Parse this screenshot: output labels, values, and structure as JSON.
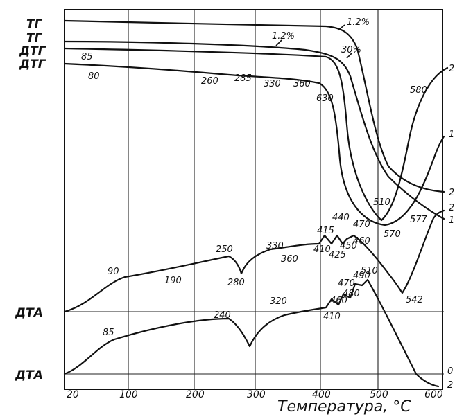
{
  "chart_data": {
    "type": "line",
    "xlabel": "Температура, °C",
    "xlim": [
      20,
      600
    ],
    "x_ticks": [
      "20",
      "100",
      "200",
      "300",
      "400",
      "500",
      "600"
    ],
    "grid": true,
    "left_labels": [
      "ТГ",
      "ТГ",
      "ДТГ",
      "ДТГ",
      "ДТА",
      "ДТА"
    ],
    "right_labels": [
      "2",
      "1",
      "2",
      "2",
      "1",
      "0",
      "2"
    ],
    "series": [
      {
        "values": [
          [
            20,
            0
          ],
          [
            400,
            -0.3
          ],
          [
            470,
            -1
          ],
          [
            500,
            -6
          ],
          [
            550,
            -30
          ],
          [
            600,
            -36
          ]
        ]
      },
      {
        "values": [
          [
            20,
            0
          ],
          [
            300,
            -1
          ],
          [
            440,
            -4
          ],
          [
            470,
            -10
          ],
          [
            530,
            -32
          ],
          [
            600,
            -38
          ]
        ]
      },
      {
        "values": [
          [
            20,
            0
          ],
          [
            300,
            -1
          ],
          [
            440,
            -5
          ],
          [
            500,
            -40
          ],
          [
            510,
            -45
          ],
          [
            530,
            -38
          ],
          [
            560,
            -25
          ],
          [
            600,
            -10
          ]
        ]
      },
      {
        "values": [
          [
            20,
            0
          ],
          [
            260,
            -1
          ],
          [
            285,
            -1.5
          ],
          [
            330,
            -2
          ],
          [
            360,
            -2.5
          ],
          [
            400,
            -6
          ],
          [
            440,
            -25
          ],
          [
            500,
            -45
          ],
          [
            540,
            -42
          ],
          [
            580,
            -28
          ],
          [
            600,
            -10
          ]
        ]
      },
      {
        "values": [
          [
            20,
            0
          ],
          [
            90,
            7
          ],
          [
            190,
            10
          ],
          [
            250,
            14
          ],
          [
            280,
            10
          ],
          [
            330,
            14
          ],
          [
            360,
            16
          ],
          [
            410,
            18
          ],
          [
            415,
            19
          ],
          [
            425,
            18
          ],
          [
            440,
            20
          ],
          [
            450,
            18
          ],
          [
            460,
            19
          ],
          [
            470,
            20
          ],
          [
            542,
            5
          ],
          [
            580,
            30
          ]
        ]
      },
      {
        "values": [
          [
            20,
            0
          ],
          [
            85,
            8
          ],
          [
            240,
            12
          ],
          [
            280,
            6
          ],
          [
            320,
            11
          ],
          [
            410,
            12
          ],
          [
            460,
            14
          ],
          [
            470,
            16
          ],
          [
            480,
            15
          ],
          [
            490,
            17
          ],
          [
            510,
            18
          ],
          [
            600,
            -2
          ]
        ]
      }
    ],
    "annotations": [
      "1.2%",
      "1.2%",
      "30%",
      "85",
      "80",
      "260",
      "285",
      "330",
      "360",
      "630",
      "580",
      "510",
      "570",
      "577",
      "90",
      "190",
      "250",
      "280",
      "330",
      "360",
      "410",
      "415",
      "425",
      "440",
      "450",
      "460",
      "470",
      "542",
      "85",
      "240",
      "320",
      "410",
      "460",
      "470",
      "480",
      "490",
      "510"
    ]
  }
}
